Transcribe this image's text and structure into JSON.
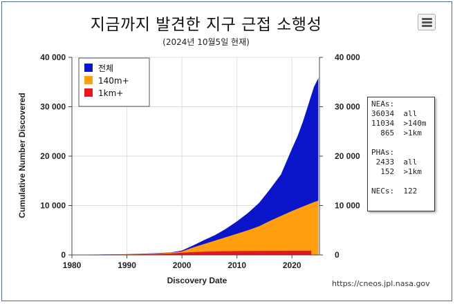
{
  "title": "지금까지 발견한 지구 근접 소행성",
  "subtitle": "(2024년 10월5일 현재)",
  "source": "https://cneos.jpl.nasa.gov",
  "menu_icon": "hamburger-menu-icon",
  "stats": {
    "neas_label": "NEAs:",
    "neas": [
      {
        "value": "36034",
        "label": "all"
      },
      {
        "value": "11034",
        "label": ">140m"
      },
      {
        "value": "865",
        "label": ">1km"
      }
    ],
    "phas_label": "PHAs:",
    "phas": [
      {
        "value": "2433",
        "label": "all"
      },
      {
        "value": "152",
        "label": ">1km"
      }
    ],
    "necs_label": "NECs:",
    "necs_value": "122"
  },
  "chart_data": {
    "type": "area",
    "xlabel": "Discovery Date",
    "ylabel": "Cumulative Number Discovered",
    "xlim": [
      1980,
      2025
    ],
    "ylim": [
      0,
      40000
    ],
    "xticks": [
      1980,
      1990,
      2000,
      2010,
      2020
    ],
    "yticks": [
      "0",
      "10 000",
      "20 000",
      "30 000",
      "40 000"
    ],
    "ytick_values": [
      0,
      10000,
      20000,
      30000,
      40000
    ],
    "grid": true,
    "legend_position": "top-left",
    "colors": {
      "all": "#0a14c8",
      "140m": "#ff9f10",
      "1km": "#e8141e"
    },
    "series": [
      {
        "name": "전체",
        "color": "#0a14c8",
        "x": [
          1980,
          1985,
          1990,
          1995,
          1998,
          2000,
          2002,
          2004,
          2006,
          2008,
          2010,
          2012,
          2014,
          2016,
          2018,
          2020,
          2021,
          2022,
          2023,
          2024,
          2024.8
        ],
        "y": [
          50,
          80,
          150,
          350,
          500,
          900,
          1900,
          3000,
          4000,
          5300,
          6800,
          8500,
          10500,
          13300,
          16300,
          21500,
          24000,
          27000,
          30500,
          34000,
          35800
        ]
      },
      {
        "name": "140m+",
        "color": "#ff9f10",
        "x": [
          1980,
          1985,
          1990,
          1995,
          1998,
          2000,
          2002,
          2004,
          2006,
          2008,
          2010,
          2012,
          2014,
          2016,
          2018,
          2020,
          2022,
          2024,
          2024.8
        ],
        "y": [
          40,
          70,
          130,
          300,
          450,
          700,
          1500,
          2200,
          2900,
          3600,
          4300,
          5000,
          5800,
          6900,
          7900,
          8900,
          9800,
          10700,
          11000
        ]
      },
      {
        "name": "1km+",
        "color": "#e8141e",
        "x": [
          1980,
          1985,
          1990,
          1995,
          1998,
          2000,
          2002,
          2004,
          2006,
          2010,
          2015,
          2020,
          2023.5
        ],
        "y": [
          20,
          40,
          80,
          180,
          300,
          450,
          580,
          660,
          720,
          790,
          830,
          850,
          860
        ]
      }
    ]
  }
}
